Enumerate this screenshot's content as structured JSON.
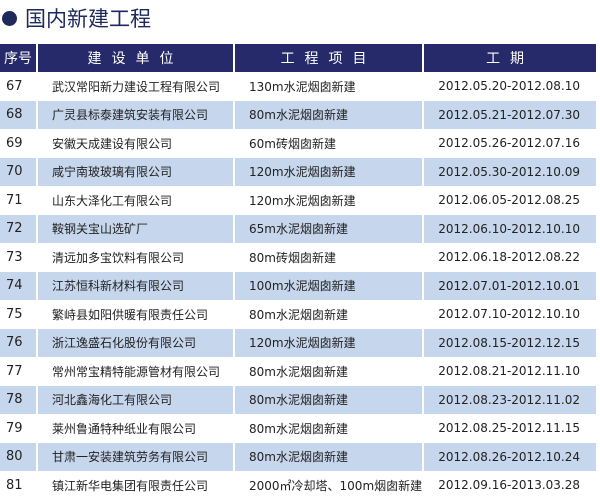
{
  "title": "国内新建工程",
  "colors": {
    "header_bg": "#262a6b",
    "alt_row": "#c6d6ec",
    "title": "#1f2a5c"
  },
  "headers": [
    "序号",
    "建设单位",
    "工程项目",
    "工期"
  ],
  "rows": [
    [
      "67",
      "武汉常阳新力建设工程有限公司",
      "130m水泥烟囱新建",
      "2012.05.20-2012.08.10"
    ],
    [
      "68",
      "广灵县标泰建筑安装有限公司",
      "80m水泥烟囱新建",
      "2012.05.21-2012.07.30"
    ],
    [
      "69",
      "安徽天成建设有限公司",
      "60m砖烟囱新建",
      "2012.05.26-2012.07.16"
    ],
    [
      "70",
      "咸宁南玻玻璃有限公司",
      "120m水泥烟囱新建",
      "2012.05.30-2012.10.09"
    ],
    [
      "71",
      "山东大泽化工有限公司",
      "120m水泥烟囱新建",
      "2012.06.05-2012.08.25"
    ],
    [
      "72",
      "鞍钢关宝山选矿厂",
      "65m水泥烟囱新建",
      "2012.06.10-2012.10.10"
    ],
    [
      "73",
      "清远加多宝饮料有限公司",
      "80m砖烟囱新建",
      "2012.06.18-2012.08.22"
    ],
    [
      "74",
      "江苏恒科新材料有限公司",
      "100m水泥烟囱新建",
      "2012.07.01-2012.10.01"
    ],
    [
      "75",
      "繁峙县如阳供暖有限责任公司",
      "80m水泥烟囱新建",
      "2012.07.10-2012.10.10"
    ],
    [
      "76",
      "浙江逸盛石化股份有限公司",
      "120m水泥烟囱新建",
      "2012.08.15-2012.12.15"
    ],
    [
      "77",
      "常州常宝精特能源管材有限公司",
      "80m水泥烟囱新建",
      "2012.08.21-2012.11.10"
    ],
    [
      "78",
      "河北鑫海化工有限公司",
      "80m水泥烟囱新建",
      "2012.08.23-2012.11.02"
    ],
    [
      "79",
      "莱州鲁通特种纸业有限公司",
      "80m水泥烟囱新建",
      "2012.08.25-2012.11.15"
    ],
    [
      "80",
      "甘肃一安装建筑劳务有限公司",
      "80m水泥烟囱新建",
      "2012.08.26-2012.10.24"
    ],
    [
      "81",
      "镇江新华电集团有限责任公司",
      "2000㎡冷却塔、100m烟囱新建",
      "2012.09.16-2013.03.28"
    ]
  ]
}
